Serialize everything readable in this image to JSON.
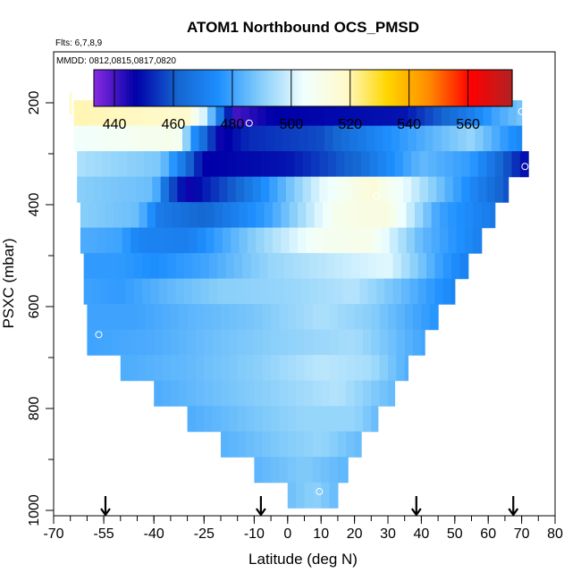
{
  "chart_data": {
    "type": "heatmap",
    "title": "ATOM1 Northbound OCS_PMSD",
    "subtitle_flights": "Flts: 6,7,8,9",
    "subtitle_dates": "MMDD: 0812,0815,0817,0820",
    "xlabel": "Latitude (deg N)",
    "ylabel": "PSXC (mbar)",
    "xlim": [
      -70,
      80
    ],
    "ylim": [
      1000,
      100
    ],
    "x_ticks": [
      -70,
      -55,
      -40,
      -25,
      -10,
      0,
      10,
      20,
      30,
      40,
      50,
      60,
      70,
      80
    ],
    "y_ticks": [
      200,
      400,
      600,
      800,
      1000
    ],
    "colorbar": {
      "min": 433,
      "max": 575,
      "ticks": [
        440,
        460,
        480,
        500,
        520,
        540,
        560
      ],
      "colors": [
        "#8a2be2",
        "#0000a8",
        "#1565d0",
        "#1e90ff",
        "#87cefa",
        "#f0ffff",
        "#fffacd",
        "#ffd700",
        "#ff8c00",
        "#ff0000",
        "#b22222"
      ]
    },
    "profile_arrows_lat": [
      -54.5,
      -8,
      38.5,
      67.5
    ],
    "sample_markers": [
      {
        "lat": -11.5,
        "p": 240
      },
      {
        "lat": 70,
        "p": 217
      },
      {
        "lat": 71,
        "p": 325
      },
      {
        "lat": 26.5,
        "p": 383
      },
      {
        "lat": -56.5,
        "p": 655
      },
      {
        "lat": 9.5,
        "p": 963
      }
    ],
    "rows": [
      {
        "p": 220,
        "lat_min": -64,
        "lat_max": 70,
        "stops": [
          [
            -64,
            520
          ],
          [
            -30,
            518
          ],
          [
            -25,
            500
          ],
          [
            -22,
            480
          ],
          [
            -16,
            440
          ],
          [
            -5,
            447
          ],
          [
            35,
            450
          ],
          [
            55,
            470
          ],
          [
            62,
            480
          ],
          [
            70,
            488
          ]
        ]
      },
      {
        "p": 270,
        "lat_min": -64,
        "lat_max": 70,
        "stops": [
          [
            -64,
            505
          ],
          [
            -33,
            510
          ],
          [
            -28,
            475
          ],
          [
            -20,
            445
          ],
          [
            -12,
            453
          ],
          [
            10,
            458
          ],
          [
            30,
            475
          ],
          [
            55,
            492
          ],
          [
            65,
            478
          ],
          [
            70,
            472
          ]
        ]
      },
      {
        "p": 320,
        "lat_min": -63,
        "lat_max": 72,
        "stops": [
          [
            -63,
            495
          ],
          [
            -38,
            488
          ],
          [
            -32,
            470
          ],
          [
            -25,
            447
          ],
          [
            0,
            450
          ],
          [
            20,
            462
          ],
          [
            40,
            485
          ],
          [
            55,
            478
          ],
          [
            65,
            460
          ],
          [
            72,
            447
          ]
        ]
      },
      {
        "p": 370,
        "lat_min": -63,
        "lat_max": 66,
        "stops": [
          [
            -63,
            490
          ],
          [
            -40,
            486
          ],
          [
            -36,
            462
          ],
          [
            -30,
            445
          ],
          [
            -15,
            462
          ],
          [
            10,
            502
          ],
          [
            25,
            515
          ],
          [
            35,
            503
          ],
          [
            50,
            480
          ],
          [
            66,
            458
          ]
        ]
      },
      {
        "p": 420,
        "lat_min": -62,
        "lat_max": 62,
        "stops": [
          [
            -62,
            490
          ],
          [
            -45,
            486
          ],
          [
            -38,
            468
          ],
          [
            -25,
            462
          ],
          [
            -5,
            480
          ],
          [
            15,
            510
          ],
          [
            30,
            513
          ],
          [
            45,
            480
          ],
          [
            62,
            468
          ]
        ]
      },
      {
        "p": 470,
        "lat_min": -62,
        "lat_max": 58,
        "stops": [
          [
            -62,
            482
          ],
          [
            -50,
            480
          ],
          [
            -45,
            472
          ],
          [
            -30,
            470
          ],
          [
            -10,
            490
          ],
          [
            10,
            508
          ],
          [
            25,
            510
          ],
          [
            40,
            485
          ],
          [
            58,
            470
          ]
        ]
      },
      {
        "p": 520,
        "lat_min": -61,
        "lat_max": 54,
        "stops": [
          [
            -61,
            478
          ],
          [
            -50,
            478
          ],
          [
            -40,
            475
          ],
          [
            -25,
            480
          ],
          [
            -5,
            492
          ],
          [
            15,
            498
          ],
          [
            30,
            502
          ],
          [
            45,
            480
          ],
          [
            54,
            470
          ]
        ]
      },
      {
        "p": 570,
        "lat_min": -61,
        "lat_max": 50,
        "stops": [
          [
            -61,
            480
          ],
          [
            -50,
            478
          ],
          [
            -35,
            485
          ],
          [
            -20,
            490
          ],
          [
            0,
            492
          ],
          [
            20,
            496
          ],
          [
            35,
            485
          ],
          [
            50,
            472
          ]
        ]
      },
      {
        "p": 620,
        "lat_min": -60,
        "lat_max": 45,
        "stops": [
          [
            -60,
            480
          ],
          [
            -45,
            480
          ],
          [
            -30,
            484
          ],
          [
            -10,
            488
          ],
          [
            10,
            495
          ],
          [
            25,
            490
          ],
          [
            45,
            476
          ]
        ]
      },
      {
        "p": 670,
        "lat_min": -60,
        "lat_max": 41,
        "stops": [
          [
            -60,
            480
          ],
          [
            -40,
            482
          ],
          [
            -20,
            487
          ],
          [
            0,
            491
          ],
          [
            20,
            494
          ],
          [
            41,
            480
          ]
        ]
      },
      {
        "p": 720,
        "lat_min": -50,
        "lat_max": 36,
        "stops": [
          [
            -50,
            482
          ],
          [
            -30,
            485
          ],
          [
            -10,
            490
          ],
          [
            10,
            497
          ],
          [
            25,
            494
          ],
          [
            36,
            482
          ]
        ]
      },
      {
        "p": 770,
        "lat_min": -40,
        "lat_max": 32,
        "stops": [
          [
            -40,
            482
          ],
          [
            -20,
            487
          ],
          [
            0,
            492
          ],
          [
            15,
            496
          ],
          [
            32,
            485
          ]
        ]
      },
      {
        "p": 820,
        "lat_min": -30,
        "lat_max": 27,
        "stops": [
          [
            -30,
            482
          ],
          [
            -10,
            488
          ],
          [
            5,
            492
          ],
          [
            20,
            492
          ],
          [
            27,
            485
          ]
        ]
      },
      {
        "p": 870,
        "lat_min": -20,
        "lat_max": 22,
        "stops": [
          [
            -20,
            483
          ],
          [
            -5,
            488
          ],
          [
            10,
            492
          ],
          [
            22,
            485
          ]
        ]
      },
      {
        "p": 920,
        "lat_min": -10,
        "lat_max": 18,
        "stops": [
          [
            -10,
            484
          ],
          [
            5,
            489
          ],
          [
            18,
            484
          ]
        ]
      },
      {
        "p": 970,
        "lat_min": 0,
        "lat_max": 15,
        "stops": [
          [
            0,
            486
          ],
          [
            8,
            491
          ],
          [
            15,
            485
          ]
        ]
      }
    ]
  }
}
